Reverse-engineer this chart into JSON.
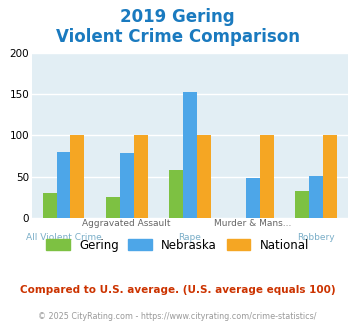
{
  "title_line1": "2019 Gering",
  "title_line2": "Violent Crime Comparison",
  "title_color": "#1a7abf",
  "categories": [
    "All Violent Crime",
    "Aggravated Assault",
    "Rape",
    "Murder & Mans...",
    "Robbery"
  ],
  "cat_labels_top": [
    "",
    "Aggravated Assault",
    "",
    "Murder & Mans...",
    ""
  ],
  "cat_labels_bottom": [
    "All Violent Crime",
    "",
    "Rape",
    "",
    "Robbery"
  ],
  "gering": [
    30,
    25,
    58,
    0,
    32
  ],
  "nebraska": [
    80,
    79,
    152,
    48,
    51
  ],
  "national": [
    100,
    100,
    100,
    100,
    100
  ],
  "gering_color": "#7dc142",
  "nebraska_color": "#4da6e8",
  "national_color": "#f5a623",
  "ylim": [
    0,
    200
  ],
  "yticks": [
    0,
    50,
    100,
    150,
    200
  ],
  "plot_bg": "#e2eef4",
  "footnote1": "Compared to U.S. average. (U.S. average equals 100)",
  "footnote1_color": "#cc3300",
  "footnote2": "© 2025 CityRating.com - https://www.cityrating.com/crime-statistics/",
  "footnote2_color": "#999999",
  "legend_labels": [
    "Gering",
    "Nebraska",
    "National"
  ],
  "bar_width": 0.22
}
